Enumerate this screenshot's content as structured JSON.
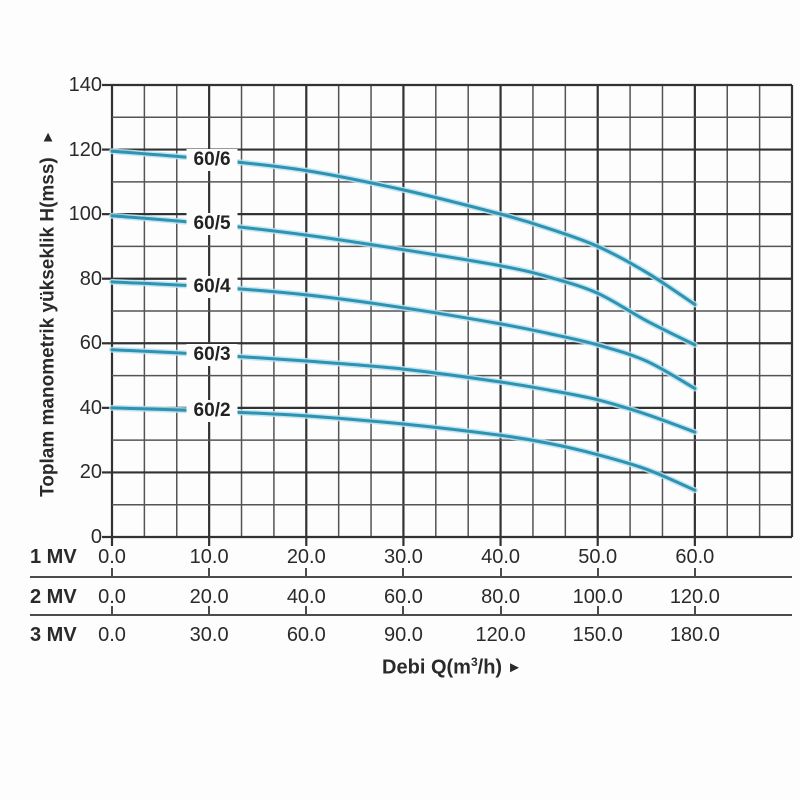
{
  "chart_data": {
    "type": "line",
    "description": "Pump performance curves: total manometric head H versus flow rate Q for five pump models, with three alternative x-axis flow scales (1 MV, 2 MV, 3 MV).",
    "y_axis": {
      "title": "Toplam manometrik yükseklik H(mss)",
      "arrow": "▲",
      "ticks": [
        140,
        120,
        100,
        80,
        60,
        40,
        20,
        0
      ],
      "range": [
        0,
        140
      ],
      "minor_step": 10
    },
    "x_axis": {
      "title_prefix": "Debi Q(m",
      "title_sup": "3",
      "title_suffix": "/h)",
      "arrow": "►",
      "range_1mv": [
        0,
        70
      ],
      "labeled_max_1mv": 60,
      "scales": [
        {
          "label": "1 MV",
          "ticks": [
            "0.0",
            "10.0",
            "20.0",
            "30.0",
            "40.0",
            "50.0",
            "60.0"
          ]
        },
        {
          "label": "2 MV",
          "ticks": [
            "0.0",
            "20.0",
            "40.0",
            "60.0",
            "80.0",
            "100.0",
            "120.0"
          ]
        },
        {
          "label": "3 MV",
          "ticks": [
            "0.0",
            "30.0",
            "60.0",
            "90.0",
            "120.0",
            "150.0",
            "180.0"
          ]
        }
      ]
    },
    "series": [
      {
        "name": "60/6",
        "points": [
          [
            0,
            119.5
          ],
          [
            10,
            117
          ],
          [
            20,
            113.5
          ],
          [
            30,
            107.5
          ],
          [
            40,
            100
          ],
          [
            45,
            95.5
          ],
          [
            50,
            90
          ],
          [
            55,
            82
          ],
          [
            60,
            72
          ]
        ]
      },
      {
        "name": "60/5",
        "points": [
          [
            0,
            99.5
          ],
          [
            10,
            97
          ],
          [
            20,
            93.5
          ],
          [
            30,
            89
          ],
          [
            40,
            84
          ],
          [
            45,
            80.5
          ],
          [
            50,
            75.5
          ],
          [
            55,
            67
          ],
          [
            60,
            59.5
          ]
        ]
      },
      {
        "name": "60/4",
        "points": [
          [
            0,
            79
          ],
          [
            10,
            77.5
          ],
          [
            20,
            75
          ],
          [
            30,
            71
          ],
          [
            40,
            66
          ],
          [
            45,
            63
          ],
          [
            50,
            59.5
          ],
          [
            55,
            54.5
          ],
          [
            60,
            46
          ]
        ]
      },
      {
        "name": "60/3",
        "points": [
          [
            0,
            58
          ],
          [
            10,
            56.5
          ],
          [
            20,
            54.5
          ],
          [
            30,
            52
          ],
          [
            40,
            48
          ],
          [
            45,
            45.5
          ],
          [
            50,
            42.5
          ],
          [
            55,
            38
          ],
          [
            60,
            32.5
          ]
        ]
      },
      {
        "name": "60/2",
        "points": [
          [
            0,
            40
          ],
          [
            10,
            39
          ],
          [
            20,
            37.5
          ],
          [
            30,
            35
          ],
          [
            40,
            31.5
          ],
          [
            45,
            29
          ],
          [
            50,
            25.5
          ],
          [
            55,
            21
          ],
          [
            60,
            14.5
          ]
        ]
      }
    ],
    "grid": {
      "x_minor_per_major": 3,
      "y_minor_per_major": 2,
      "visible": true
    },
    "legend": "labels on curves",
    "colors": {
      "curve": "#2e93b2",
      "curve_halo": "#b8e2ef",
      "grid_minor": "#545454",
      "grid_major": "#323232",
      "separator": "#4c4c4c",
      "text": "#2a2a2a",
      "label_background": "#fdfdfd"
    }
  }
}
